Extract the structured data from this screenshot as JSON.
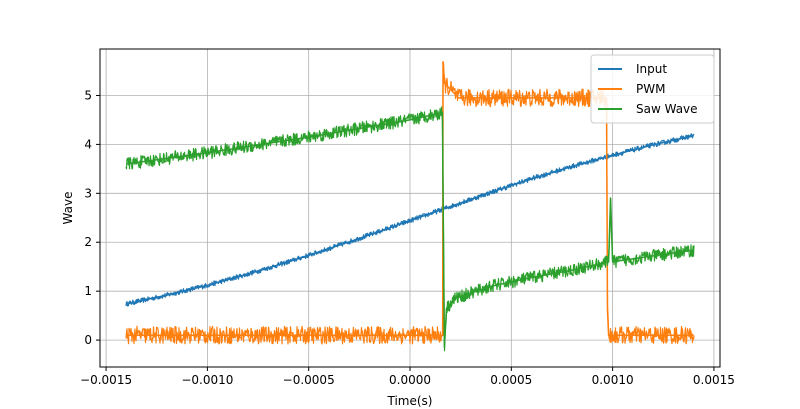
{
  "chart_data": {
    "type": "line",
    "title": "",
    "xlabel": "Time(s)",
    "ylabel": "Wave",
    "xlim": [
      -0.00153,
      0.00153
    ],
    "ylim": [
      -0.55,
      5.95
    ],
    "xticks": [
      -0.0015,
      -0.001,
      -0.0005,
      0.0,
      0.0005,
      0.001,
      0.0015
    ],
    "xtick_labels": [
      "−0.0015",
      "−0.0010",
      "−0.0005",
      "0.0000",
      "0.0005",
      "0.0010",
      "0.0015"
    ],
    "yticks": [
      0,
      1,
      2,
      3,
      4,
      5
    ],
    "ytick_labels": [
      "0",
      "1",
      "2",
      "3",
      "4",
      "5"
    ],
    "grid": true,
    "legend_position": "top-right",
    "series": [
      {
        "name": "Input",
        "color": "#1f77b4",
        "x": [
          -0.0014,
          -0.0012,
          -0.001,
          -0.0008,
          -0.0006,
          -0.0004,
          -0.0002,
          0.0,
          0.0002,
          0.0004,
          0.0006,
          0.0008,
          0.001,
          0.0012,
          0.0014
        ],
        "y": [
          0.74,
          0.92,
          1.12,
          1.35,
          1.6,
          1.87,
          2.15,
          2.44,
          2.73,
          3.02,
          3.3,
          3.55,
          3.78,
          3.99,
          4.18
        ],
        "noise": 0.05
      },
      {
        "name": "PWM",
        "color": "#ff7f0e",
        "x": [
          -0.0014,
          0.000162,
          0.000163,
          0.00017,
          0.00024,
          0.00097,
          0.000975,
          0.00098,
          0.0014
        ],
        "y": [
          0.1,
          0.1,
          5.7,
          5.25,
          4.95,
          4.95,
          0.6,
          0.1,
          0.1
        ],
        "noise": 0.18
      },
      {
        "name": "Saw Wave",
        "color": "#2ca02c",
        "x": [
          -0.0014,
          -0.001,
          -0.0005,
          0.0,
          0.00016,
          0.00017,
          0.00018,
          0.00022,
          0.0004,
          0.0006,
          0.0008,
          0.00098,
          0.00099,
          0.001,
          0.0012,
          0.0014
        ],
        "y": [
          3.6,
          3.83,
          4.15,
          4.5,
          4.65,
          -0.15,
          0.65,
          0.85,
          1.1,
          1.28,
          1.43,
          1.6,
          2.9,
          1.6,
          1.72,
          1.84
        ],
        "noise": 0.13
      }
    ]
  }
}
